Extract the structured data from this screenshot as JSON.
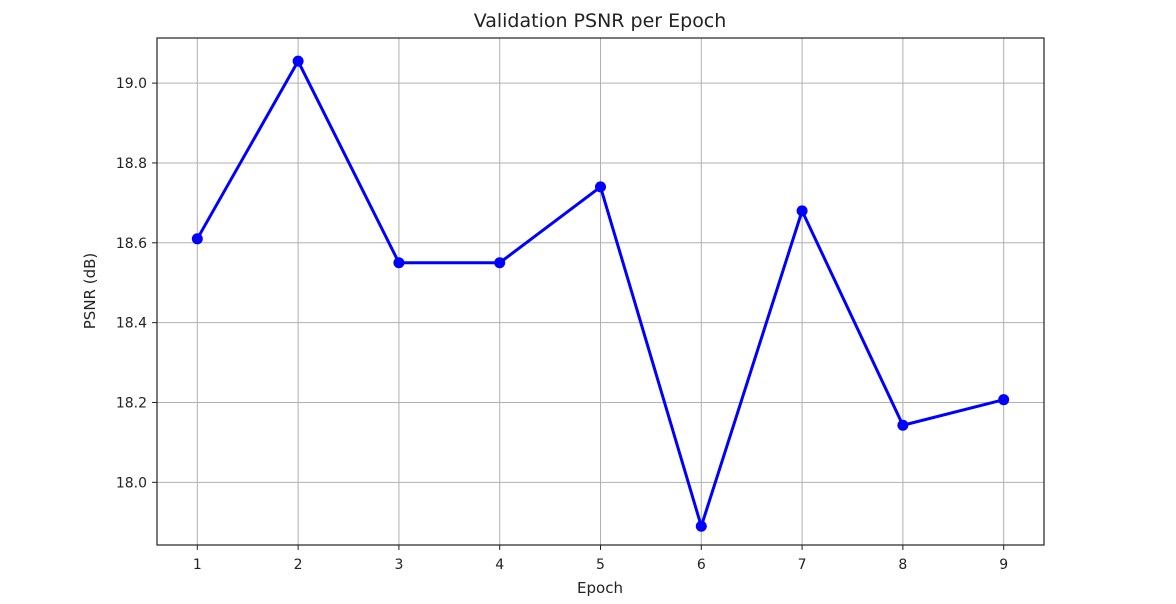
{
  "chart_data": {
    "type": "line",
    "title": "Validation PSNR per Epoch",
    "xlabel": "Epoch",
    "ylabel": "PSNR (dB)",
    "x": [
      1,
      2,
      3,
      4,
      5,
      6,
      7,
      8,
      9
    ],
    "series": [
      {
        "values": [
          18.61,
          19.055,
          18.55,
          18.55,
          18.74,
          17.89,
          18.68,
          18.143,
          18.207
        ],
        "color": "#0000ff",
        "marker": "circle"
      }
    ],
    "xticks": [
      "1",
      "2",
      "3",
      "4",
      "5",
      "6",
      "7",
      "8",
      "9"
    ],
    "yticks": [
      "18.0",
      "18.2",
      "18.4",
      "18.6",
      "18.8",
      "19.0"
    ],
    "xlim": [
      0.6,
      9.4
    ],
    "ylim": [
      17.843,
      19.113
    ],
    "grid": true
  }
}
